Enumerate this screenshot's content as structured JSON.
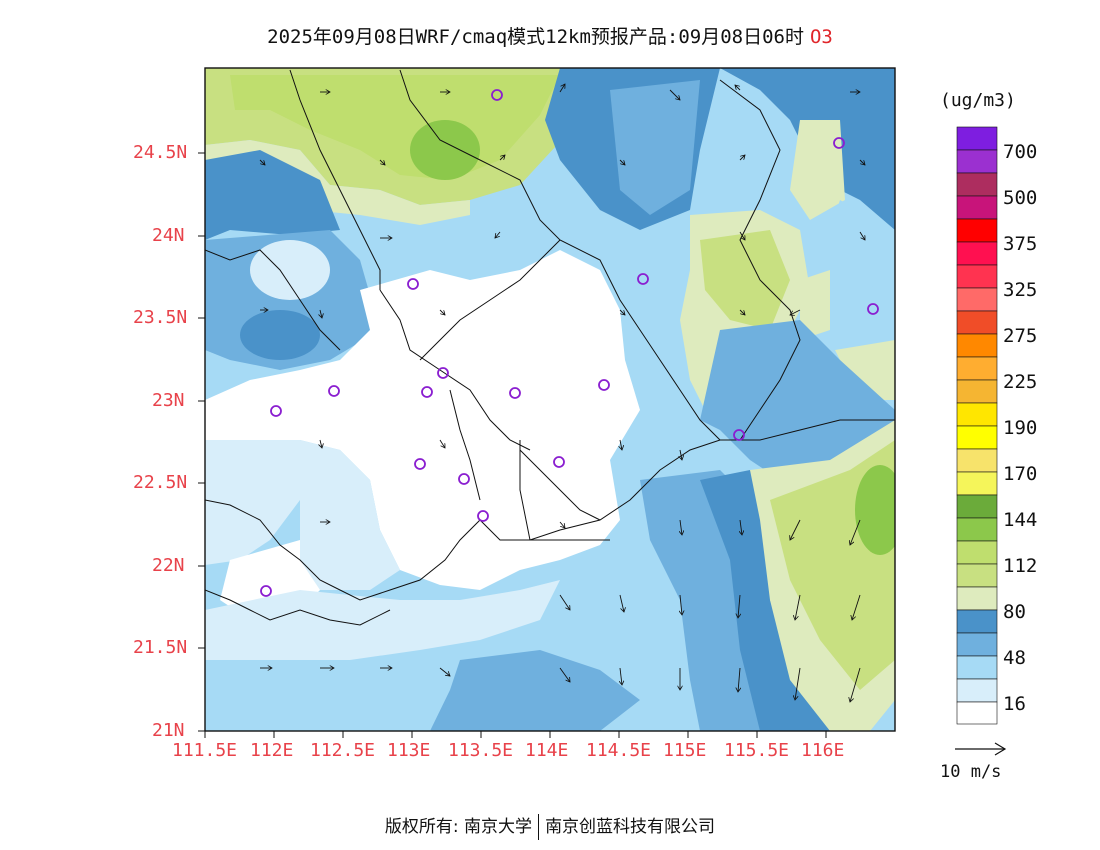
{
  "title": "2025年09月08日WRF/cmaq模式12km预报产品:09月08日06时",
  "pollutant": "O3",
  "unit": "(ug/m3)",
  "lat_labels": [
    "24.5N",
    "24N",
    "23.5N",
    "23N",
    "22.5N",
    "22N",
    "21.5N",
    "21N"
  ],
  "lon_labels": [
    "111.5E",
    "112E",
    "112.5E",
    "113E",
    "113.5E",
    "114E",
    "114.5E",
    "115E",
    "115.5E",
    "116E"
  ],
  "legend": {
    "labels": [
      "700",
      "500",
      "375",
      "325",
      "275",
      "225",
      "190",
      "170",
      "144",
      "112",
      "80",
      "48",
      "16"
    ],
    "colors": [
      "#7e1ee0",
      "#9b30d0",
      "#ad2d5f",
      "#c8147a",
      "#ff0000",
      "#ff1050",
      "#ff3350",
      "#ff6a68",
      "#f04d28",
      "#ff8800",
      "#ffad30",
      "#f5b532",
      "#ffe600",
      "#ffff00",
      "#f7e36b",
      "#f5f55a",
      "#6bab3a",
      "#8cc84b",
      "#bfde6e",
      "#c8e081",
      "#deebbe",
      "#4a92c9",
      "#6fb0de",
      "#a6daf5",
      "#d8eefa",
      "#ffffff"
    ]
  },
  "wind_ref": "10  m/s",
  "footer": {
    "left": "版权所有: 南京大学",
    "right": "南京创蓝科技有限公司"
  }
}
